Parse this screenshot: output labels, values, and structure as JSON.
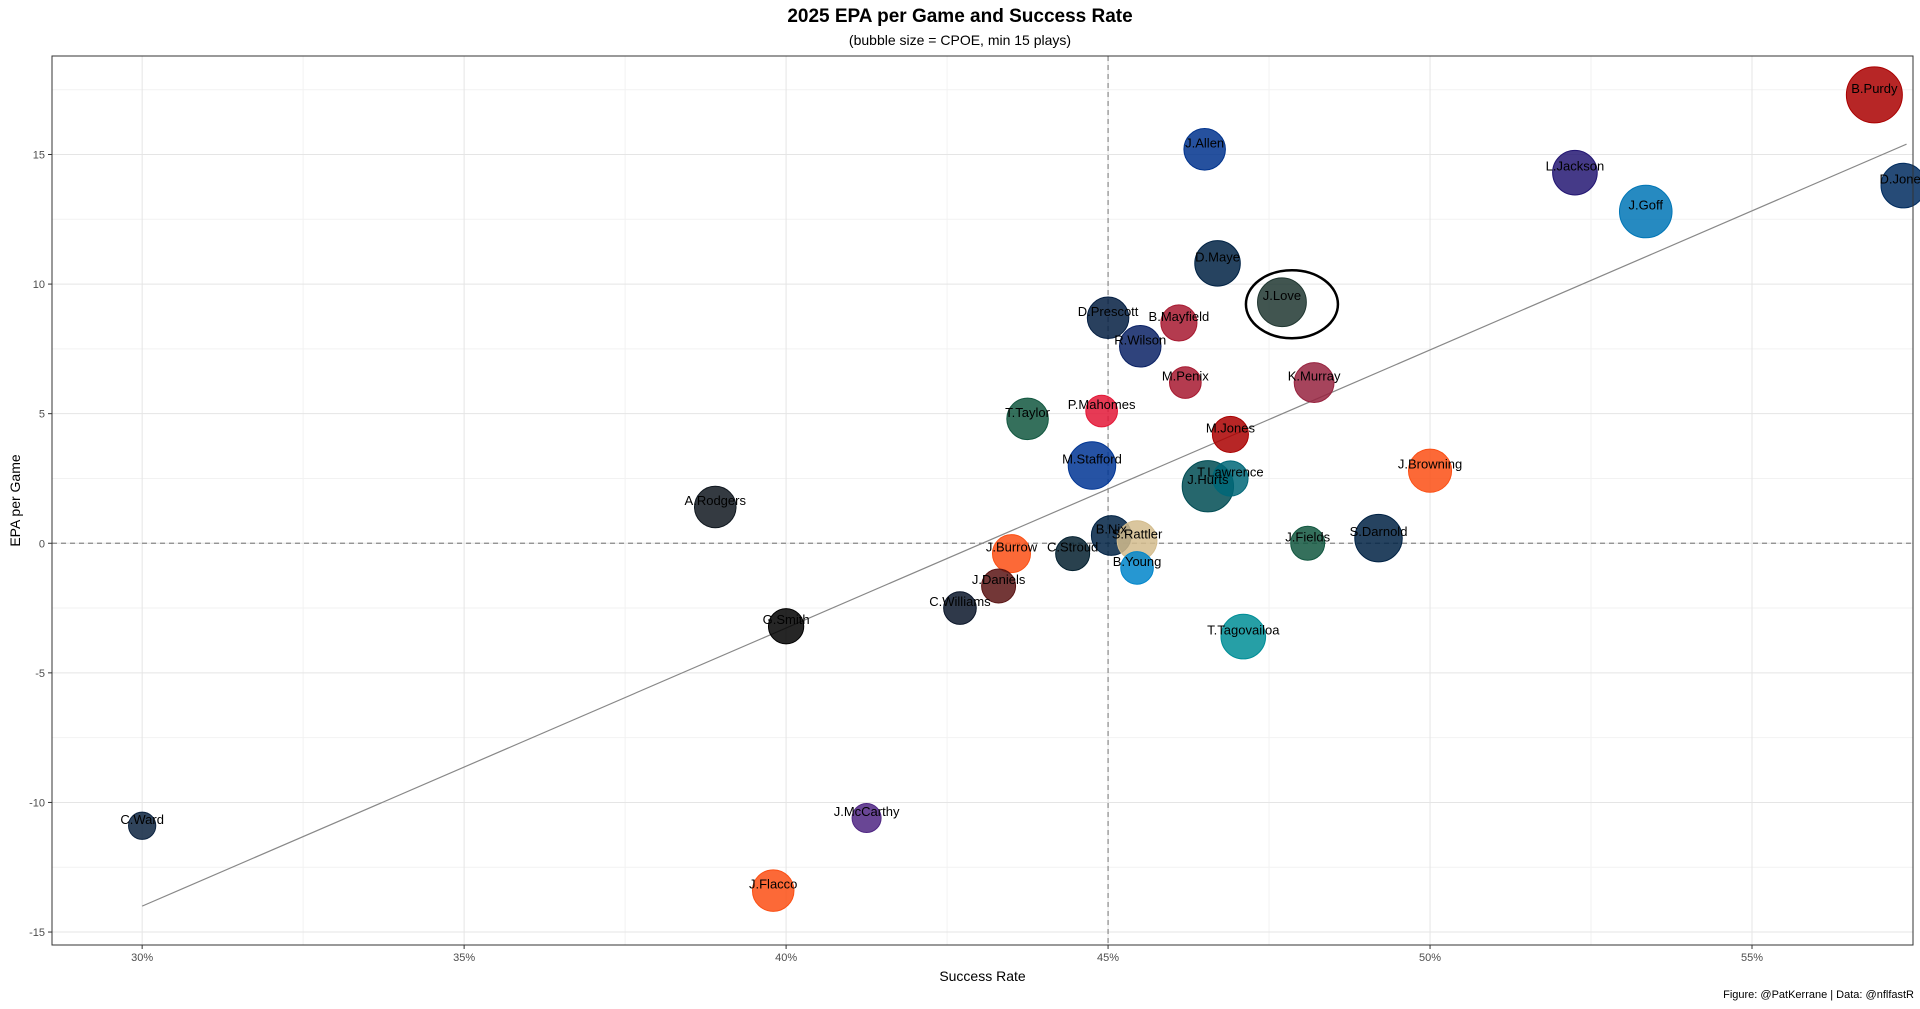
{
  "chart_data": {
    "type": "scatter",
    "title": "2025 EPA per Game and Success Rate",
    "subtitle": "(bubble size = CPOE, min 15 plays)",
    "xlabel": "Success Rate",
    "ylabel": "EPA per Game",
    "caption": "Figure: @PatKerrane | Data: @nflfastR",
    "xlim": [
      0.286,
      0.575
    ],
    "ylim": [
      -15.5,
      18.8
    ],
    "x_ticks": [
      0.3,
      0.35,
      0.4,
      0.45,
      0.5,
      0.55
    ],
    "x_tick_labels": [
      "30%",
      "35%",
      "40%",
      "45%",
      "50%",
      "55%"
    ],
    "y_ticks": [
      -15,
      -10,
      -5,
      0,
      5,
      10,
      15
    ],
    "y_tick_labels": [
      "-15",
      "-10",
      "-5",
      "0",
      "5",
      "10",
      "15"
    ],
    "grid": true,
    "reference_lines": {
      "x": 0.45,
      "y": 0
    },
    "trend_line": {
      "x": [
        0.3,
        0.574
      ],
      "y": [
        -14.0,
        15.4
      ]
    },
    "highlight": "J.Love",
    "points": [
      {
        "label": "B.Purdy",
        "x": 0.569,
        "y": 17.3,
        "size": 1.0,
        "color": "#AA0000"
      },
      {
        "label": "L.Jackson",
        "x": 0.5225,
        "y": 14.3,
        "size": 0.55,
        "color": "#241773"
      },
      {
        "label": "J.Goff",
        "x": 0.5335,
        "y": 12.8,
        "size": 0.85,
        "color": "#0076B6"
      },
      {
        "label": "D.Jones",
        "x": 0.5735,
        "y": 13.8,
        "size": 0.55,
        "color": "#002C5F"
      },
      {
        "label": "J.Allen",
        "x": 0.465,
        "y": 15.2,
        "size": 0.45,
        "color": "#00338D"
      },
      {
        "label": "D.Maye",
        "x": 0.467,
        "y": 10.8,
        "size": 0.58,
        "color": "#002244"
      },
      {
        "label": "J.Love",
        "x": 0.477,
        "y": 9.3,
        "size": 0.7,
        "color": "#203731"
      },
      {
        "label": "D.Prescott",
        "x": 0.45,
        "y": 8.7,
        "size": 0.45,
        "color": "#041E42"
      },
      {
        "label": "B.Mayfield",
        "x": 0.461,
        "y": 8.5,
        "size": 0.3,
        "color": "#A71930"
      },
      {
        "label": "R.Wilson",
        "x": 0.455,
        "y": 7.6,
        "size": 0.45,
        "color": "#0B2265"
      },
      {
        "label": "M.Penix",
        "x": 0.462,
        "y": 6.2,
        "size": 0.2,
        "color": "#A71930"
      },
      {
        "label": "K.Murray",
        "x": 0.482,
        "y": 6.2,
        "size": 0.4,
        "color": "#97233F"
      },
      {
        "label": "P.Mahomes",
        "x": 0.449,
        "y": 5.1,
        "size": 0.2,
        "color": "#E31837"
      },
      {
        "label": "T.Taylor",
        "x": 0.4375,
        "y": 4.8,
        "size": 0.45,
        "color": "#125740"
      },
      {
        "label": "M.Jones",
        "x": 0.469,
        "y": 4.2,
        "size": 0.3,
        "color": "#AA0000"
      },
      {
        "label": "M.Stafford",
        "x": 0.4475,
        "y": 3.0,
        "size": 0.65,
        "color": "#003594"
      },
      {
        "label": "J.Hurts",
        "x": 0.4655,
        "y": 2.2,
        "size": 0.8,
        "color": "#004C54"
      },
      {
        "label": "T.Lawrence",
        "x": 0.469,
        "y": 2.5,
        "size": 0.28,
        "color": "#006778"
      },
      {
        "label": "J.Browning",
        "x": 0.5,
        "y": 2.8,
        "size": 0.5,
        "color": "#FB4F14"
      },
      {
        "label": "A.Rodgers",
        "x": 0.389,
        "y": 1.4,
        "size": 0.45,
        "color": "#101820"
      },
      {
        "label": "B.Nix",
        "x": 0.4505,
        "y": 0.3,
        "size": 0.4,
        "color": "#002244"
      },
      {
        "label": "S.Rattler",
        "x": 0.4545,
        "y": 0.1,
        "size": 0.4,
        "color": "#D3BC8D"
      },
      {
        "label": "S.Darnold",
        "x": 0.492,
        "y": 0.2,
        "size": 0.65,
        "color": "#002244"
      },
      {
        "label": "J.Fields",
        "x": 0.481,
        "y": 0.0,
        "size": 0.25,
        "color": "#125740"
      },
      {
        "label": "J.Burrow",
        "x": 0.435,
        "y": -0.4,
        "size": 0.35,
        "color": "#FB4F14"
      },
      {
        "label": "C.Stroud",
        "x": 0.4445,
        "y": -0.4,
        "size": 0.25,
        "color": "#03202F"
      },
      {
        "label": "B.Young",
        "x": 0.4545,
        "y": -0.95,
        "size": 0.22,
        "color": "#0085CA"
      },
      {
        "label": "J.Daniels",
        "x": 0.433,
        "y": -1.65,
        "size": 0.25,
        "color": "#5A1414"
      },
      {
        "label": "C.Williams",
        "x": 0.427,
        "y": -2.5,
        "size": 0.22,
        "color": "#0B162A"
      },
      {
        "label": "G.Smith",
        "x": 0.4,
        "y": -3.2,
        "size": 0.28,
        "color": "#000000"
      },
      {
        "label": "T.Tagovailoa",
        "x": 0.471,
        "y": -3.6,
        "size": 0.55,
        "color": "#008E97"
      },
      {
        "label": "C.Ward",
        "x": 0.3,
        "y": -10.9,
        "size": 0.12,
        "color": "#0C2340"
      },
      {
        "label": "J.McCarthy",
        "x": 0.4125,
        "y": -10.6,
        "size": 0.15,
        "color": "#4F2683"
      },
      {
        "label": "J.Flacco",
        "x": 0.398,
        "y": -13.4,
        "size": 0.45,
        "color": "#FB4F14"
      }
    ]
  }
}
